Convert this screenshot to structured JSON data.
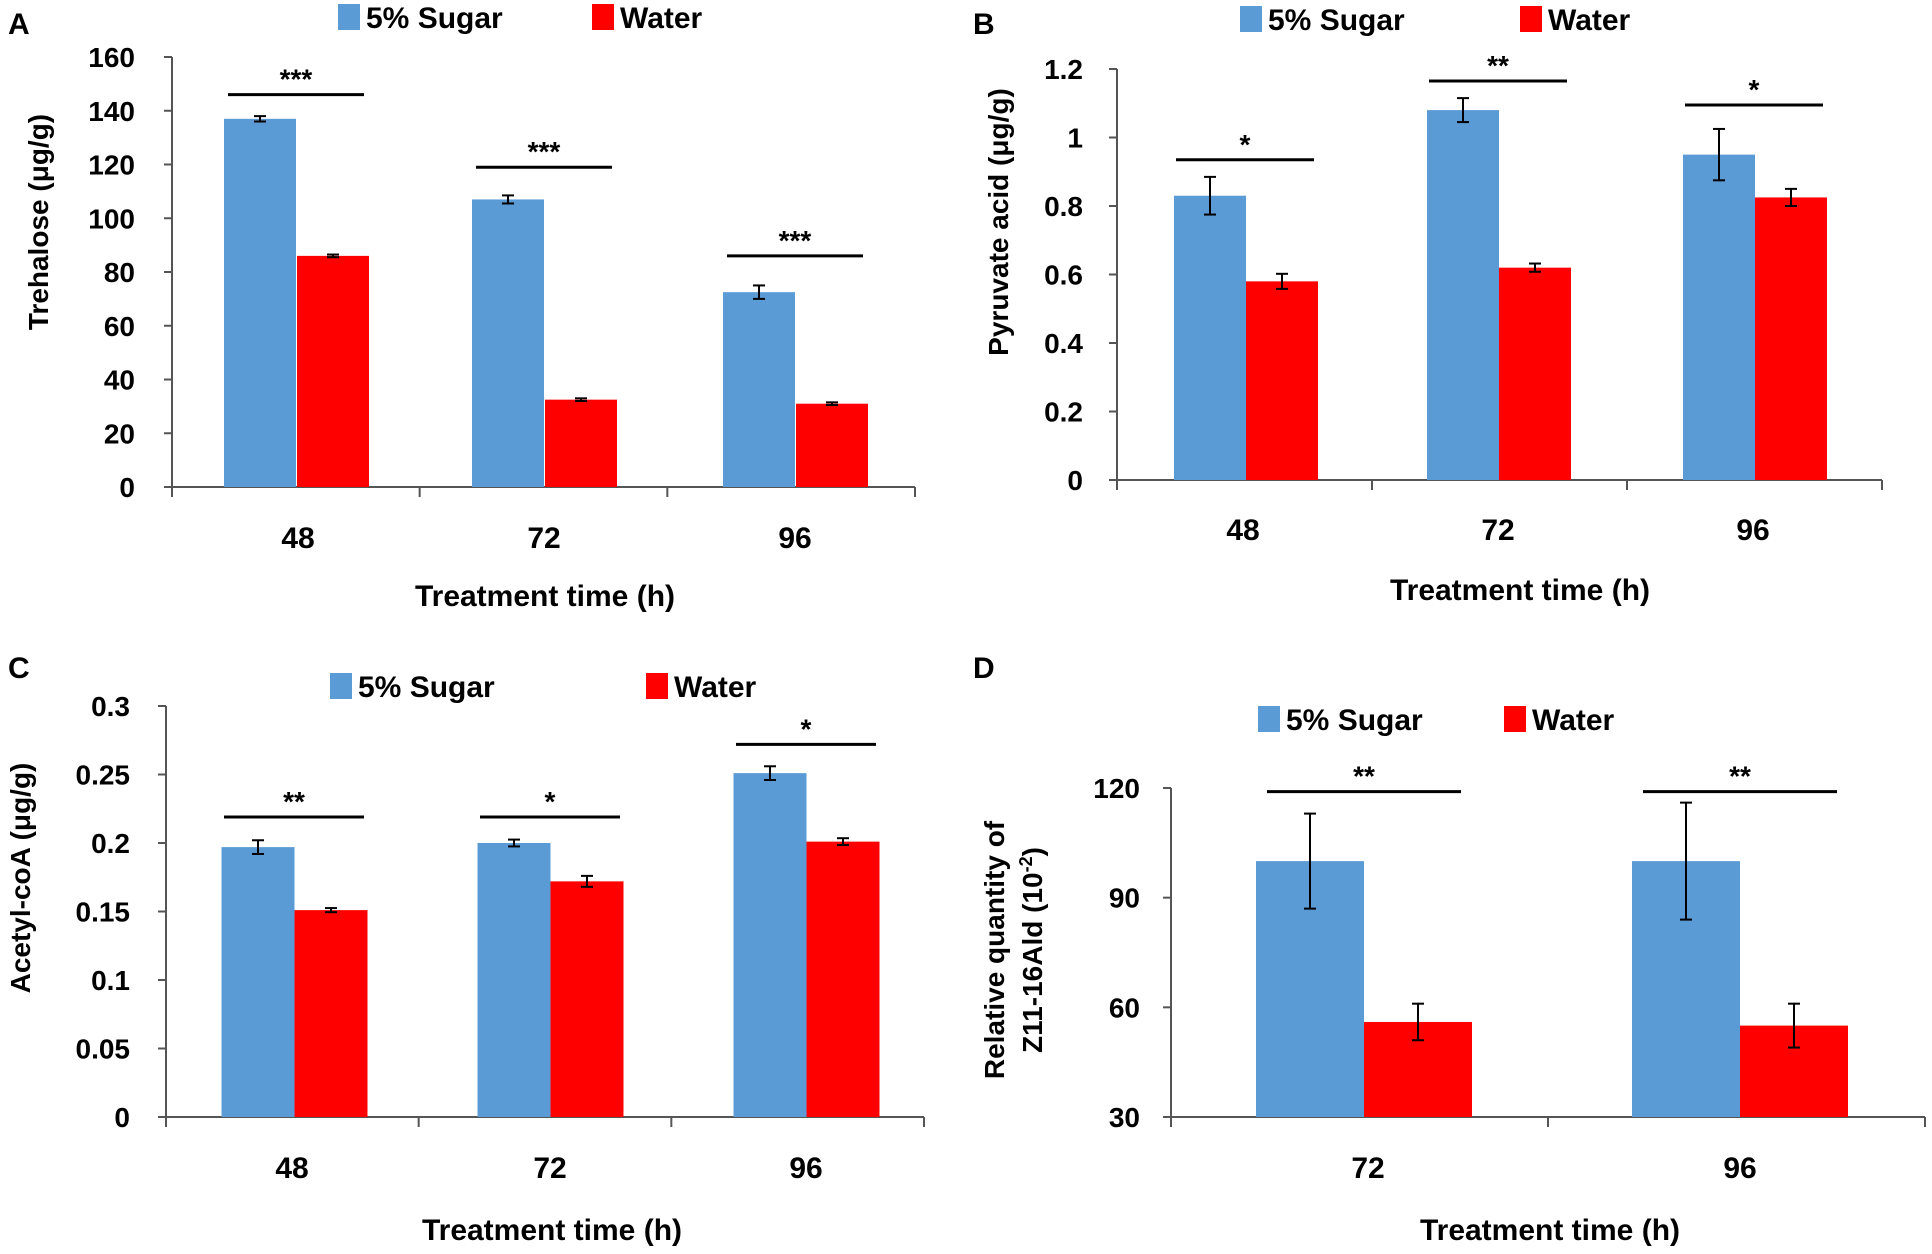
{
  "series_colors": {
    "sugar": "#5B9BD5",
    "water": "#FF0000"
  },
  "chart_data": [
    {
      "type": "bar",
      "panel": "A",
      "title": "",
      "xlabel": "Treatment time  (h)",
      "ylabel": "Trehalose (μg/g)",
      "categories": [
        "48",
        "72",
        "96"
      ],
      "ylim": [
        0,
        160
      ],
      "yticks": [
        0,
        20,
        40,
        60,
        80,
        100,
        120,
        140,
        160
      ],
      "tick_labels": [
        "0",
        "20",
        "40",
        "60",
        "80",
        "100",
        "120",
        "140",
        "160"
      ],
      "series": [
        {
          "name": "5% Sugar",
          "values": [
            137,
            107,
            72.5
          ],
          "errors": [
            1,
            1.5,
            2.5
          ]
        },
        {
          "name": "Water",
          "values": [
            86,
            32.5,
            31
          ],
          "errors": [
            0.5,
            0.5,
            0.5
          ]
        }
      ],
      "significance": [
        "***",
        "***",
        "***"
      ],
      "sig_levels": [
        146,
        119,
        86
      ]
    },
    {
      "type": "bar",
      "panel": "B",
      "title": "",
      "xlabel": "Treatment time  (h)",
      "ylabel": "Pyruvate acid (μg/g)",
      "categories": [
        "48",
        "72",
        "96"
      ],
      "ylim": [
        0,
        1.2
      ],
      "yticks": [
        0,
        0.2,
        0.4,
        0.6,
        0.8,
        1.0,
        1.2
      ],
      "tick_labels": [
        "0",
        "0.2",
        "0.4",
        "0.6",
        "0.8",
        "1",
        "1.2"
      ],
      "series": [
        {
          "name": "5% Sugar",
          "values": [
            0.83,
            1.08,
            0.95
          ],
          "errors": [
            0.055,
            0.035,
            0.075
          ]
        },
        {
          "name": "Water",
          "values": [
            0.58,
            0.62,
            0.825
          ],
          "errors": [
            0.022,
            0.012,
            0.025
          ]
        }
      ],
      "significance": [
        "*",
        "**",
        "*"
      ],
      "sig_levels": [
        0.935,
        1.165,
        1.095
      ]
    },
    {
      "type": "bar",
      "panel": "C",
      "title": "",
      "xlabel": "Treatment time  (h)",
      "ylabel": "Acetyl-coA (μg/g)",
      "categories": [
        "48",
        "72",
        "96"
      ],
      "ylim": [
        0,
        0.3
      ],
      "yticks": [
        0,
        0.05,
        0.1,
        0.15,
        0.2,
        0.25,
        0.3
      ],
      "tick_labels": [
        "0",
        "0.05",
        "0.1",
        "0.15",
        "0.2",
        "0.25",
        "0.3"
      ],
      "series": [
        {
          "name": "5% Sugar",
          "values": [
            0.197,
            0.2,
            0.251
          ],
          "errors": [
            0.005,
            0.0025,
            0.005
          ]
        },
        {
          "name": "Water",
          "values": [
            0.151,
            0.172,
            0.201
          ],
          "errors": [
            0.0015,
            0.004,
            0.0025
          ]
        }
      ],
      "significance": [
        "**",
        "*",
        "*"
      ],
      "sig_levels": [
        0.219,
        0.219,
        0.272
      ]
    },
    {
      "type": "bar",
      "panel": "D",
      "title": "",
      "xlabel": "Treatment time  (h)",
      "ylabel_line1": "Relative quantity of",
      "ylabel_line2": "Z11-16Ald (10",
      "ylabel_sup": "-2",
      "ylabel_line2_end": ")",
      "categories": [
        "72",
        "96"
      ],
      "ylim": [
        30,
        120
      ],
      "yticks": [
        30,
        60,
        90,
        120
      ],
      "tick_labels": [
        "30",
        "60",
        "90",
        "120"
      ],
      "series": [
        {
          "name": "5% Sugar",
          "values": [
            100,
            100
          ],
          "errors": [
            13,
            16
          ]
        },
        {
          "name": "Water",
          "values": [
            56,
            55
          ],
          "errors": [
            5,
            6
          ]
        }
      ],
      "significance": [
        "**",
        "**"
      ],
      "sig_levels": [
        119,
        119
      ]
    }
  ]
}
